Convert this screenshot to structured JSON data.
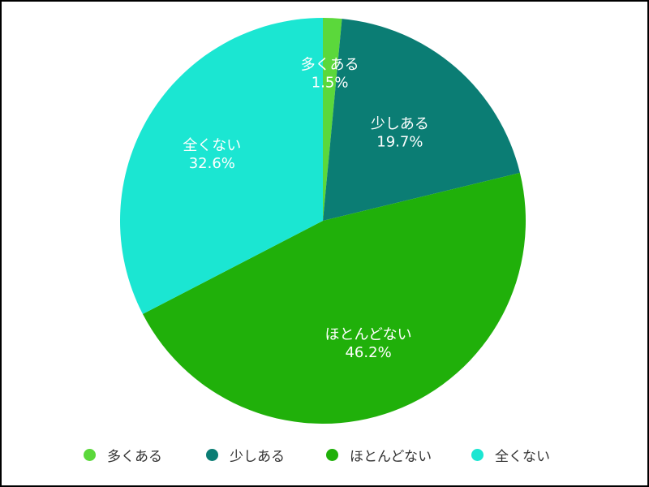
{
  "chart_data": {
    "type": "pie",
    "title": "",
    "categories": [
      "多くある",
      "少しある",
      "ほとんどない",
      "全くない"
    ],
    "values": [
      1.5,
      19.7,
      46.2,
      32.6
    ],
    "labels": [
      "1.5%",
      "19.7%",
      "46.2%",
      "32.6%"
    ],
    "colors": [
      "#5bd83b",
      "#0b7d74",
      "#20b00a",
      "#1be6d2"
    ],
    "legend_position": "bottom",
    "start_angle": "top",
    "direction": "clockwise"
  }
}
